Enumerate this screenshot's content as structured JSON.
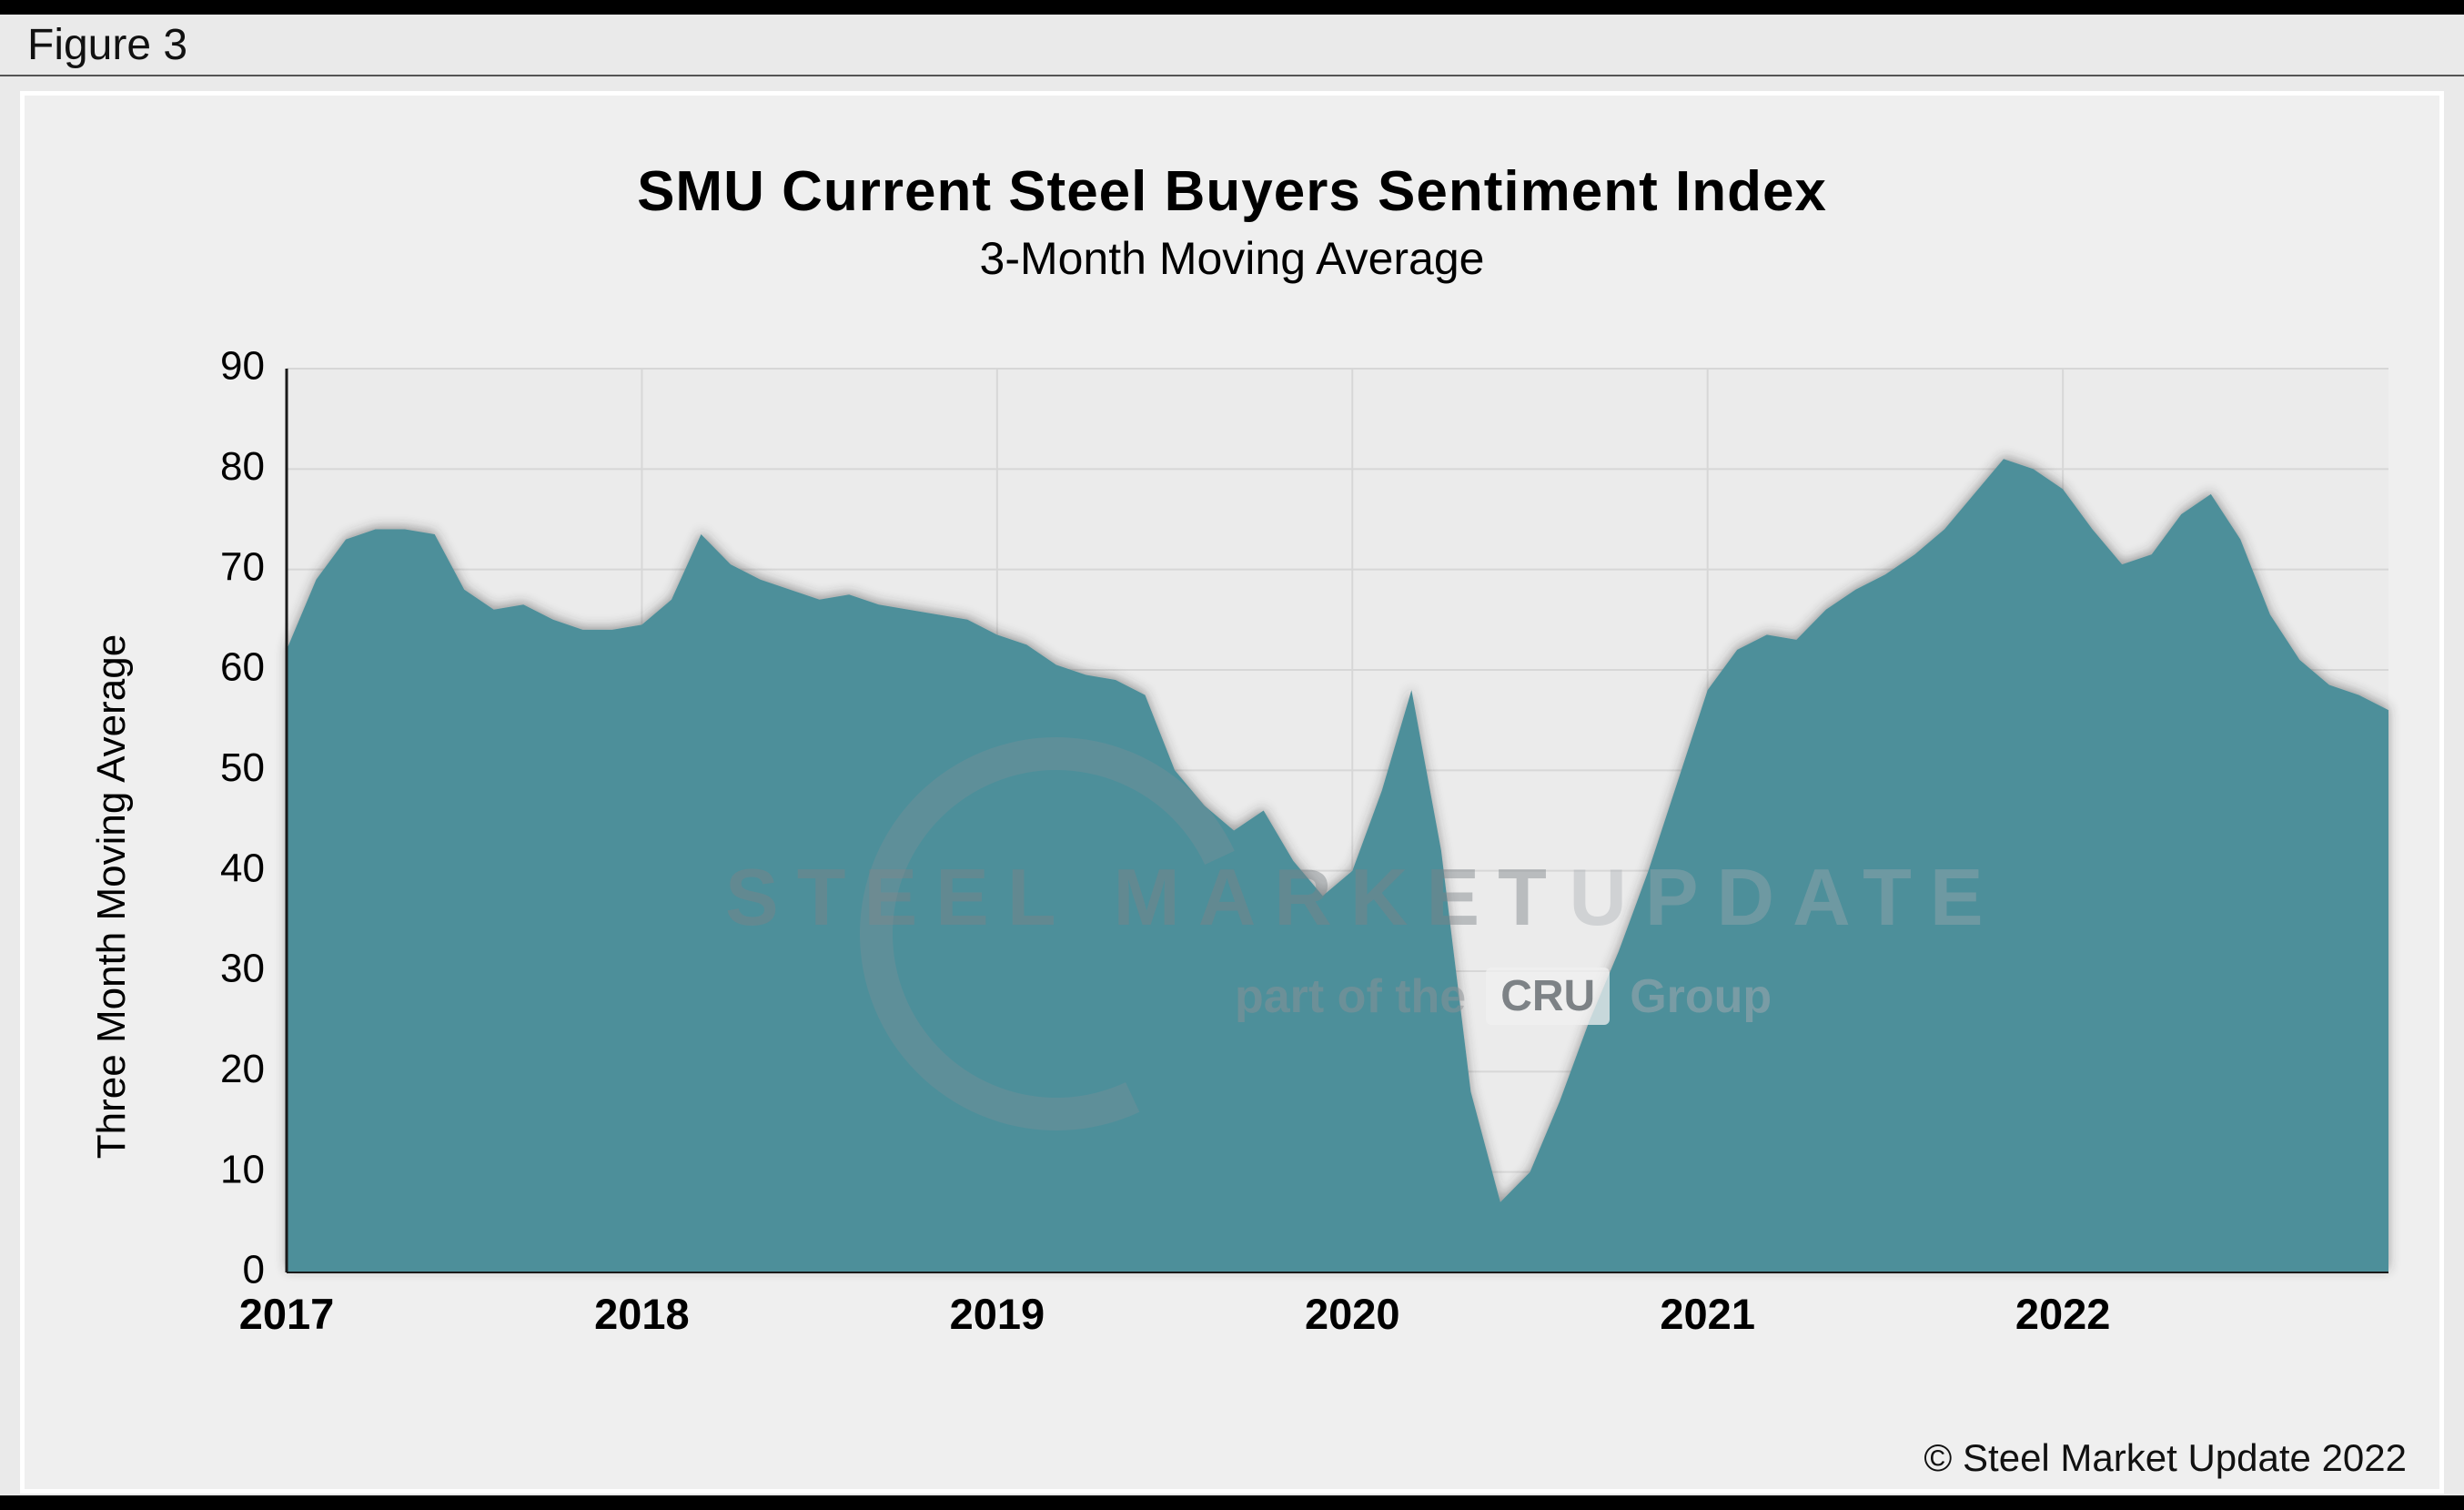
{
  "figure_label": "Figure 3",
  "header": {
    "title": "SMU Current Steel Buyers Sentiment Index",
    "subtitle": "3-Month Moving Average"
  },
  "copyright": "© Steel Market Update 2022",
  "watermark": {
    "word1": "STEEL MARKET",
    "word2": "UPDATE",
    "line2_prefix": "part of the",
    "line2_logo": "CRU",
    "line2_suffix": "Group"
  },
  "chart_data": {
    "type": "area",
    "title": "SMU Current Steel Buyers Sentiment Index",
    "subtitle": "3-Month Moving Average",
    "xlabel": "",
    "ylabel": "Three Month Moving Average",
    "ylim": [
      0,
      90
    ],
    "yticks": [
      0,
      10,
      20,
      30,
      40,
      50,
      60,
      70,
      80,
      90
    ],
    "x_year_labels": [
      "2017",
      "2018",
      "2019",
      "2020",
      "2021",
      "2022"
    ],
    "points_per_year": 12,
    "x_start": "2017-01",
    "grid": true,
    "legend": false,
    "series": [
      {
        "name": "Current Steel Buyers Sentiment Index (3-month moving average)",
        "values": [
          62,
          69,
          73,
          74,
          74,
          73.5,
          68,
          66,
          66.5,
          65,
          64,
          64,
          64.5,
          67,
          73.5,
          70.5,
          69,
          68,
          67,
          67.5,
          66.5,
          66,
          65.5,
          65,
          63.5,
          62.5,
          60.5,
          59.5,
          59,
          57.5,
          50,
          46.5,
          44,
          46,
          41,
          37.5,
          40,
          48,
          58,
          42,
          18,
          7,
          10,
          17,
          25,
          32,
          40,
          49,
          58,
          62,
          63.5,
          63,
          66,
          68,
          69.5,
          71.5,
          74,
          77.5,
          81,
          80,
          78,
          74,
          70.5,
          71.5,
          75.5,
          77.5,
          73,
          65.5,
          61,
          58.5,
          57.5,
          56
        ]
      }
    ],
    "colors": {
      "area_fill": "#4e8f9a",
      "plot_background": "#ebebeb",
      "gridline": "#d7d7d7",
      "axis": "#1a1a1a",
      "page_background": "#eaeaea"
    }
  }
}
